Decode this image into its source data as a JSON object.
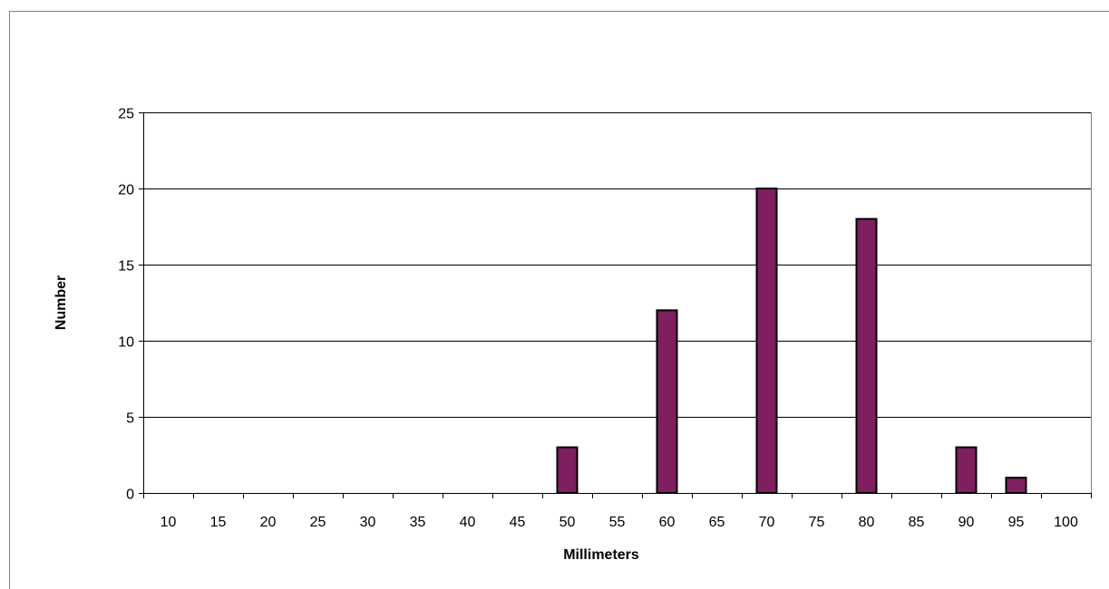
{
  "chart_data": {
    "type": "bar",
    "title": "",
    "xlabel": "Millimeters",
    "ylabel": "Number",
    "categories": [
      "10",
      "15",
      "20",
      "25",
      "30",
      "35",
      "40",
      "45",
      "50",
      "55",
      "60",
      "65",
      "70",
      "75",
      "80",
      "85",
      "90",
      "95",
      "100"
    ],
    "values": [
      0,
      0,
      0,
      0,
      0,
      0,
      0,
      0,
      3,
      0,
      12,
      0,
      20,
      0,
      18,
      0,
      3,
      1,
      0
    ],
    "ylim": [
      0,
      25
    ],
    "yticks": [
      0,
      5,
      10,
      15,
      20,
      25
    ],
    "grid": "horizontal",
    "legend": "none",
    "colors": {
      "bar_fill": "#7f1f5f",
      "bar_stroke": "#000000",
      "grid": "#000000",
      "axis": "#000000",
      "frame": "#808080"
    }
  }
}
